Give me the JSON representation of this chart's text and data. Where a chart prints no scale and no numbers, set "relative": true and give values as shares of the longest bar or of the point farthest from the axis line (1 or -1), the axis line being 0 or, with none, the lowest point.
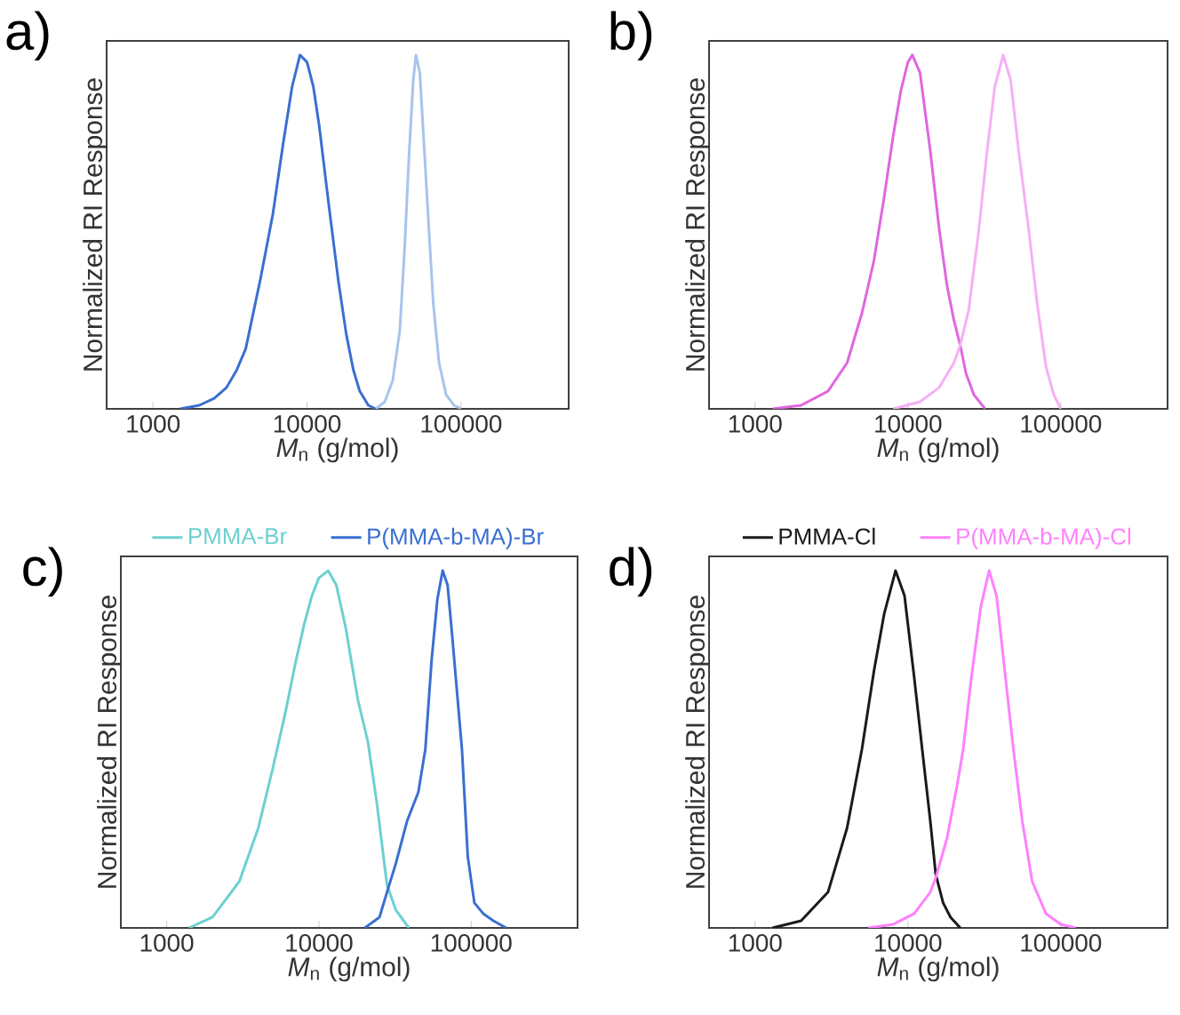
{
  "chart_data": [
    {
      "type": "line",
      "title": "a)",
      "xlabel": "*M*$_{n}$ (g/mol)",
      "ylabel": "Normalized RI Response",
      "log": "x",
      "xlim": [
        500,
        500000
      ],
      "xticks": [
        1000,
        10000,
        100000
      ],
      "relative": true,
      "series": [
        {
          "color": "#3a6fd0",
          "x": [
            1500,
            2000,
            2500,
            3000,
            3500,
            4000,
            5000,
            6000,
            7000,
            8000,
            9000,
            10000,
            11000,
            12000,
            14000,
            16000,
            18000,
            20000,
            22000,
            25000,
            28000
          ],
          "values": [
            0,
            0.01,
            0.03,
            0.06,
            0.11,
            0.17,
            0.37,
            0.55,
            0.75,
            0.91,
            1.0,
            0.98,
            0.91,
            0.8,
            0.56,
            0.36,
            0.21,
            0.11,
            0.05,
            0.01,
            0
          ]
        },
        {
          "color": "#a8c4ec",
          "x": [
            28000,
            32000,
            36000,
            40000,
            43000,
            46000,
            49000,
            51000,
            54000,
            58000,
            62000,
            66000,
            72000,
            80000,
            90000,
            100000
          ],
          "values": [
            0,
            0.02,
            0.08,
            0.22,
            0.45,
            0.72,
            0.93,
            1.0,
            0.95,
            0.72,
            0.5,
            0.3,
            0.13,
            0.04,
            0.01,
            0
          ]
        }
      ]
    },
    {
      "type": "line",
      "title": "b)",
      "xlabel": "*M*$_{n}$ (g/mol)",
      "ylabel": "Normalized RI Response",
      "log": "x",
      "xlim": [
        500,
        500000
      ],
      "xticks": [
        1000,
        10000,
        100000
      ],
      "relative": true,
      "series": [
        {
          "color": "#e066e0",
          "x": [
            1300,
            2000,
            3000,
            4000,
            5000,
            6000,
            7000,
            8000,
            9000,
            10000,
            10700,
            12000,
            14000,
            16000,
            18000,
            20000,
            22000,
            24000,
            27000,
            32000
          ],
          "values": [
            0,
            0.01,
            0.05,
            0.13,
            0.27,
            0.42,
            0.6,
            0.77,
            0.9,
            0.98,
            1.0,
            0.95,
            0.73,
            0.51,
            0.35,
            0.25,
            0.18,
            0.1,
            0.04,
            0
          ]
        },
        {
          "color": "#f5b0f5",
          "x": [
            8000,
            12000,
            16000,
            20000,
            22000,
            25000,
            29000,
            33000,
            37000,
            42000,
            47000,
            53000,
            62000,
            70000,
            80000,
            90000,
            100000
          ],
          "values": [
            0,
            0.02,
            0.06,
            0.13,
            0.18,
            0.28,
            0.5,
            0.73,
            0.91,
            1.0,
            0.93,
            0.73,
            0.5,
            0.3,
            0.12,
            0.04,
            0
          ]
        }
      ]
    },
    {
      "type": "line",
      "title": "c)",
      "xlabel": "*M*$_{n}$ (g/mol)",
      "ylabel": "Normalized RI Response",
      "log": "x",
      "xlim": [
        500,
        500000
      ],
      "xticks": [
        1000,
        10000,
        100000
      ],
      "relative": true,
      "legend": "top",
      "series": [
        {
          "name": "PMMA-Br",
          "color": "#6cd0d0",
          "x": [
            1400,
            2000,
            3000,
            4000,
            5000,
            6000,
            7000,
            8000,
            9000,
            10000,
            11500,
            13000,
            15000,
            18000,
            21000,
            24000,
            28000,
            32000,
            39000
          ],
          "values": [
            0,
            0.03,
            0.13,
            0.28,
            0.45,
            0.6,
            0.74,
            0.85,
            0.93,
            0.98,
            1.0,
            0.96,
            0.84,
            0.64,
            0.52,
            0.35,
            0.12,
            0.05,
            0
          ]
        },
        {
          "name": "P(MMA-b-MA)-Br",
          "color": "#3a6fd0",
          "x": [
            20000,
            25000,
            28000,
            32000,
            38000,
            45000,
            50000,
            55000,
            60000,
            65000,
            70000,
            75000,
            80000,
            87000,
            95000,
            105000,
            120000,
            140000,
            170000
          ],
          "values": [
            0,
            0.03,
            0.1,
            0.18,
            0.3,
            0.38,
            0.5,
            0.75,
            0.92,
            1.0,
            0.96,
            0.82,
            0.68,
            0.5,
            0.2,
            0.07,
            0.04,
            0.02,
            0
          ]
        }
      ]
    },
    {
      "type": "line",
      "title": "d)",
      "xlabel": "*M*$_{n}$ (g/mol)",
      "ylabel": "Normalized RI Response",
      "log": "x",
      "xlim": [
        500,
        500000
      ],
      "xticks": [
        1000,
        10000,
        100000
      ],
      "relative": true,
      "legend": "top",
      "series": [
        {
          "name": "PMMA-Cl",
          "color": "#1a1a1a",
          "x": [
            1300,
            2000,
            3000,
            4000,
            5000,
            6000,
            7000,
            8300,
            9500,
            11000,
            12400,
            14000,
            15200,
            17000,
            19000,
            22000
          ],
          "values": [
            0,
            0.02,
            0.1,
            0.28,
            0.5,
            0.72,
            0.88,
            1.0,
            0.93,
            0.7,
            0.5,
            0.3,
            0.15,
            0.07,
            0.03,
            0
          ]
        },
        {
          "name": "P(MMA-b-MA)-Cl",
          "color": "#ff80ff",
          "x": [
            5500,
            8000,
            11000,
            14000,
            15200,
            18000,
            21000,
            23000,
            26000,
            30000,
            34000,
            38000,
            43000,
            49000,
            56000,
            65000,
            80000,
            100000,
            125000
          ],
          "values": [
            0,
            0.01,
            0.04,
            0.1,
            0.14,
            0.25,
            0.4,
            0.5,
            0.7,
            0.9,
            1.0,
            0.93,
            0.72,
            0.5,
            0.3,
            0.13,
            0.04,
            0.01,
            0
          ]
        }
      ]
    }
  ]
}
